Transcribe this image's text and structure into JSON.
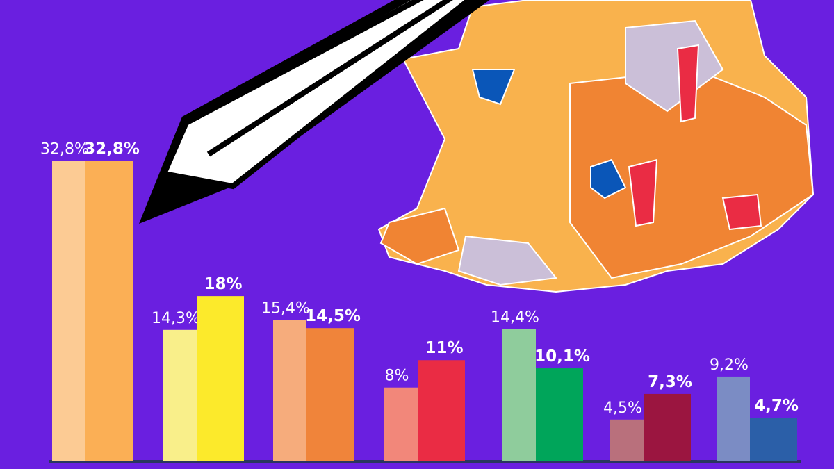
{
  "chart_data": {
    "type": "bar",
    "categories": [
      null,
      null,
      null,
      null,
      null,
      null,
      null
    ],
    "ylim": [
      0,
      50
    ],
    "series": [
      {
        "colors": [
          "#fccb94",
          "#f9ef8a",
          "#f6ac7c",
          "#f2877a",
          "#8fcc9c",
          "#b9707c",
          "#7b8cc4"
        ],
        "values": [
          32.8,
          14.3,
          15.4,
          8,
          14.4,
          4.5,
          9.2
        ],
        "value_labels": [
          "32,8%",
          "14,3%",
          "15,4%",
          "8%",
          "14,4%",
          "4,5%",
          "9,2%"
        ]
      },
      {
        "colors": [
          "#fbaf55",
          "#fcea2b",
          "#f0843a",
          "#ea2c44",
          "#00a55a",
          "#9b1540",
          "#2b5fa8"
        ],
        "values": [
          32.8,
          18,
          14.5,
          11,
          10.1,
          7.3,
          4.7
        ],
        "value_labels": [
          "32,8%",
          "18%",
          "14,5%",
          "11%",
          "10,1%",
          "7,3%",
          "4,7%"
        ]
      }
    ]
  }
}
